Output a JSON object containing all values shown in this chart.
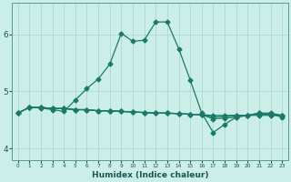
{
  "title": "",
  "xlabel": "Humidex (Indice chaleur)",
  "bg_color": "#cceee8",
  "grid_color": "#b0d8d0",
  "line_color": "#1a7a6a",
  "xlim": [
    -0.5,
    23.5
  ],
  "ylim": [
    3.8,
    6.55
  ],
  "yticks": [
    4,
    5,
    6
  ],
  "xticks": [
    0,
    1,
    2,
    3,
    4,
    5,
    6,
    7,
    8,
    9,
    10,
    11,
    12,
    13,
    14,
    15,
    16,
    17,
    18,
    19,
    20,
    21,
    22,
    23
  ],
  "line1_x": [
    0,
    1,
    2,
    3,
    4,
    5,
    6,
    7,
    8,
    9,
    10,
    11,
    12,
    13,
    14,
    15,
    16,
    17,
    18,
    19,
    20,
    21,
    22,
    23
  ],
  "line1_y": [
    4.62,
    4.72,
    4.72,
    4.7,
    4.7,
    4.68,
    4.68,
    4.66,
    4.66,
    4.65,
    4.64,
    4.63,
    4.62,
    4.62,
    4.61,
    4.6,
    4.59,
    4.58,
    4.58,
    4.58,
    4.58,
    4.58,
    4.58,
    4.58
  ],
  "line2_x": [
    0,
    1,
    2,
    3,
    4,
    5,
    6,
    7,
    8,
    9,
    10,
    11,
    12,
    13,
    14,
    15,
    16,
    17,
    18,
    19,
    20,
    21,
    22,
    23
  ],
  "line2_y": [
    4.62,
    4.72,
    4.72,
    4.7,
    4.7,
    4.68,
    4.68,
    4.66,
    4.66,
    4.65,
    4.64,
    4.63,
    4.62,
    4.62,
    4.61,
    4.6,
    4.59,
    4.52,
    4.53,
    4.55,
    4.58,
    4.6,
    4.6,
    4.58
  ],
  "line3_x": [
    0,
    1,
    2,
    3,
    4,
    5,
    6,
    7,
    8,
    9,
    10,
    11,
    12,
    13,
    14,
    15,
    16,
    17,
    18,
    19,
    20,
    21,
    22,
    23
  ],
  "line3_y": [
    4.62,
    4.72,
    4.72,
    4.7,
    4.7,
    4.68,
    4.68,
    4.66,
    4.66,
    4.65,
    4.64,
    4.63,
    4.62,
    4.62,
    4.61,
    4.6,
    4.59,
    4.55,
    4.56,
    4.57,
    4.58,
    4.62,
    4.62,
    4.58
  ],
  "line4_x": [
    0,
    1,
    2,
    3,
    4,
    5,
    6,
    7,
    8,
    9,
    10,
    11,
    12,
    13,
    14,
    15,
    16,
    17,
    18,
    19,
    20,
    21,
    22,
    23
  ],
  "line4_y": [
    4.62,
    4.72,
    4.71,
    4.68,
    4.65,
    4.85,
    5.05,
    5.22,
    5.48,
    6.02,
    5.88,
    5.9,
    6.22,
    6.22,
    5.75,
    5.2,
    4.62,
    4.28,
    4.42,
    4.55,
    4.58,
    4.62,
    4.6,
    4.55
  ]
}
